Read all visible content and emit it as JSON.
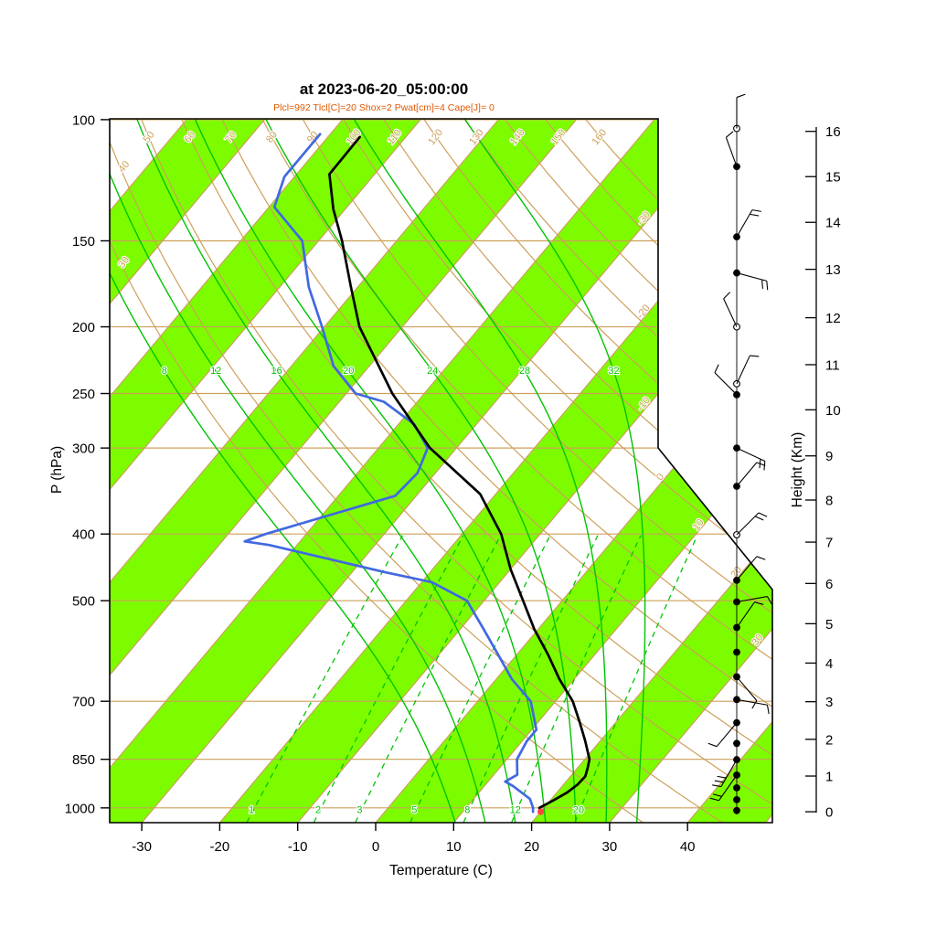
{
  "title": "at 2023-06-20_05:00:00",
  "subtitle": "Plcl=992 Tlcl[C]=20 Shox=2 Pwat[cm]=4 Cape[J]= 0",
  "axes": {
    "pressure": {
      "label": "P (hPa)",
      "ticks": [
        100,
        150,
        200,
        250,
        300,
        400,
        500,
        700,
        850,
        1000
      ]
    },
    "temperature": {
      "label": "Temperature (C)",
      "ticks": [
        -30,
        -20,
        -10,
        0,
        10,
        20,
        30,
        40
      ]
    },
    "height": {
      "label": "Height (Km)",
      "ticks": [
        0,
        1,
        2,
        3,
        4,
        5,
        6,
        7,
        8,
        9,
        10,
        11,
        12,
        13,
        14,
        15,
        16
      ]
    }
  },
  "colors": {
    "stripe_green": "#7dfc00",
    "iso_line_green": "#00c400",
    "tan": "#cda05a",
    "temperature_line": "#000000",
    "dewpoint_line": "#4169e1",
    "subtitle_text": "#e05800",
    "surface_marker": "#ff4444",
    "axis_color": "#000000"
  },
  "chart_data": {
    "type": "line",
    "subtype": "skew-T log-p atmospheric sounding",
    "pressure_range_hPa": [
      100,
      1050
    ],
    "temperature_axis_range_C": [
      -30,
      40
    ],
    "height_km_to_pressure_hPa": [
      [
        0,
        1013
      ],
      [
        1,
        899
      ],
      [
        2,
        795
      ],
      [
        3,
        701
      ],
      [
        4,
        616
      ],
      [
        5,
        540
      ],
      [
        6,
        472
      ],
      [
        7,
        411
      ],
      [
        8,
        357
      ],
      [
        9,
        308
      ],
      [
        10,
        264
      ],
      [
        11,
        227
      ],
      [
        12,
        194
      ],
      [
        13,
        165
      ],
      [
        14,
        141
      ],
      [
        15,
        121
      ],
      [
        16,
        104
      ]
    ],
    "temperature_profile_p_T": [
      [
        1013,
        20.0
      ],
      [
        1000,
        19.4
      ],
      [
        975,
        20.4
      ],
      [
        950,
        21.3
      ],
      [
        925,
        21.8
      ],
      [
        900,
        21.9
      ],
      [
        875,
        21.3
      ],
      [
        850,
        20.6
      ],
      [
        800,
        18.1
      ],
      [
        750,
        15.3
      ],
      [
        700,
        12.2
      ],
      [
        650,
        8.1
      ],
      [
        600,
        4.1
      ],
      [
        550,
        -0.5
      ],
      [
        500,
        -5.0
      ],
      [
        450,
        -10.0
      ],
      [
        400,
        -15.0
      ],
      [
        350,
        -22.0
      ],
      [
        300,
        -33.4
      ],
      [
        250,
        -44.1
      ],
      [
        200,
        -55.5
      ],
      [
        175,
        -60.9
      ],
      [
        150,
        -67.0
      ],
      [
        135,
        -71.5
      ],
      [
        120,
        -75.8
      ],
      [
        106,
        -75.9
      ]
    ],
    "dewpoint_profile_p_Td": [
      [
        1013,
        19.0
      ],
      [
        1000,
        18.6
      ],
      [
        970,
        17.2
      ],
      [
        930,
        13.7
      ],
      [
        916,
        12.2
      ],
      [
        895,
        13.0
      ],
      [
        850,
        11.3
      ],
      [
        800,
        10.6
      ],
      [
        770,
        10.6
      ],
      [
        700,
        6.8
      ],
      [
        650,
        2.0
      ],
      [
        600,
        -2.3
      ],
      [
        550,
        -7.0
      ],
      [
        500,
        -12.2
      ],
      [
        470,
        -18.7
      ],
      [
        455,
        -25.6
      ],
      [
        415,
        -43.6
      ],
      [
        410,
        -47.1
      ],
      [
        400,
        -45.2
      ],
      [
        352,
        -32.7
      ],
      [
        326,
        -32.3
      ],
      [
        300,
        -33.7
      ],
      [
        277,
        -38.0
      ],
      [
        257,
        -44.3
      ],
      [
        250,
        -48.8
      ],
      [
        228,
        -54.6
      ],
      [
        200,
        -60.3
      ],
      [
        175,
        -66.3
      ],
      [
        150,
        -72.1
      ],
      [
        134,
        -79.3
      ],
      [
        121,
        -81.3
      ],
      [
        105,
        -81.3
      ]
    ],
    "surface_marker": {
      "p": 1013,
      "T": 20
    },
    "green_band_start_C": [
      -140,
      -120,
      -100,
      -80,
      -60,
      -40,
      -20,
      0,
      20,
      40
    ],
    "isotherm_lines_C": {
      "start": -130,
      "end": 50,
      "step": 10
    },
    "isotherm_edge_labels_C": [
      -30,
      -20,
      -10,
      0,
      10,
      20,
      30
    ],
    "dry_adiabats_thetaC": [
      30,
      40,
      50,
      60,
      70,
      80,
      90,
      100,
      110,
      120,
      130,
      140,
      150,
      160
    ],
    "moist_adiabats_thetawC": [
      8,
      12,
      16,
      20,
      24,
      28,
      32
    ],
    "mixing_ratio_lines_gkg": [
      1,
      2,
      3,
      5,
      8,
      12,
      20
    ],
    "wind_levels": [
      {
        "p": 103,
        "marker": "open",
        "dir": 0,
        "ticks": 1
      },
      {
        "p": 117,
        "marker": "filled",
        "dir": 340,
        "ticks": 1
      },
      {
        "p": 148,
        "marker": "filled",
        "dir": 30,
        "ticks": 2
      },
      {
        "p": 167,
        "marker": "filled",
        "dir": 105,
        "ticks": 2
      },
      {
        "p": 200,
        "marker": "open",
        "dir": 335,
        "ticks": 1
      },
      {
        "p": 242,
        "marker": "open",
        "dir": 25,
        "ticks": 1
      },
      {
        "p": 251,
        "marker": "filled",
        "dir": 315,
        "ticks": 1
      },
      {
        "p": 300,
        "marker": "filled",
        "dir": 115,
        "ticks": 2
      },
      {
        "p": 341,
        "marker": "filled",
        "dir": 40,
        "ticks": 1
      },
      {
        "p": 401,
        "marker": "open",
        "dir": 45,
        "ticks": 2
      },
      {
        "p": 467,
        "marker": "filled",
        "dir": 40,
        "ticks": 1
      },
      {
        "p": 502,
        "marker": "filled",
        "dir": 80,
        "ticks": 1
      },
      {
        "p": 547,
        "marker": "filled",
        "dir": 35,
        "ticks": 1
      },
      {
        "p": 594,
        "marker": "filled",
        "dir": null,
        "ticks": 0
      },
      {
        "p": 645,
        "marker": "filled",
        "dir": 140,
        "ticks": 1
      },
      {
        "p": 696,
        "marker": "filled",
        "dir": 100,
        "ticks": 1
      },
      {
        "p": 752,
        "marker": "filled",
        "dir": 220,
        "ticks": 1
      },
      {
        "p": 806,
        "marker": "filled",
        "dir": null,
        "ticks": 0
      },
      {
        "p": 851,
        "marker": "filled",
        "dir": 210,
        "ticks": 3
      },
      {
        "p": 896,
        "marker": "filled",
        "dir": 215,
        "ticks": 2
      },
      {
        "p": 935,
        "marker": "filled",
        "dir": null,
        "ticks": 0
      },
      {
        "p": 973,
        "marker": "filled",
        "dir": null,
        "ticks": 0
      },
      {
        "p": 1009,
        "marker": "filled",
        "dir": null,
        "ticks": 0
      }
    ]
  }
}
